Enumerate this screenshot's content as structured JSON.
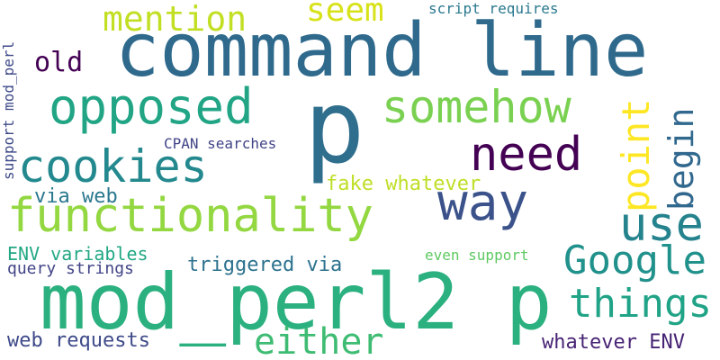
{
  "words": [
    {
      "text": "command line",
      "color": "#2f6a8d"
    },
    {
      "text": "p",
      "color": "#2f6f8d"
    },
    {
      "text": "mod_perl2 p",
      "color": "#2bb07f"
    },
    {
      "text": "functionality",
      "color": "#93d741"
    },
    {
      "text": "cookies",
      "color": "#23898e"
    },
    {
      "text": "opposed",
      "color": "#21a585"
    },
    {
      "text": "somehow",
      "color": "#7ad151"
    },
    {
      "text": "need",
      "color": "#440154"
    },
    {
      "text": "way",
      "color": "#3b528b"
    },
    {
      "text": "use",
      "color": "#25838e"
    },
    {
      "text": "Google",
      "color": "#21918c"
    },
    {
      "text": "things",
      "color": "#20a386"
    },
    {
      "text": "either",
      "color": "#3fbc73"
    },
    {
      "text": "mention",
      "color": "#c2df23"
    },
    {
      "text": "seem",
      "color": "#d8e219"
    },
    {
      "text": "old",
      "color": "#440154"
    },
    {
      "text": "point",
      "color": "#fde725"
    },
    {
      "text": "begin",
      "color": "#31688e"
    },
    {
      "text": "support mod_perl",
      "color": "#3e4a89"
    },
    {
      "text": "script requires",
      "color": "#2a788e"
    },
    {
      "text": "CPAN searches",
      "color": "#414487"
    },
    {
      "text": "fake whatever",
      "color": "#bddf26"
    },
    {
      "text": "via web",
      "color": "#2a788e"
    },
    {
      "text": "ENV variables",
      "color": "#22a884"
    },
    {
      "text": "query strings",
      "color": "#414487"
    },
    {
      "text": "triggered via",
      "color": "#2c728e"
    },
    {
      "text": "even support",
      "color": "#5ec962"
    },
    {
      "text": "web requests",
      "color": "#3e4a89"
    },
    {
      "text": "whatever ENV",
      "color": "#482475"
    }
  ]
}
